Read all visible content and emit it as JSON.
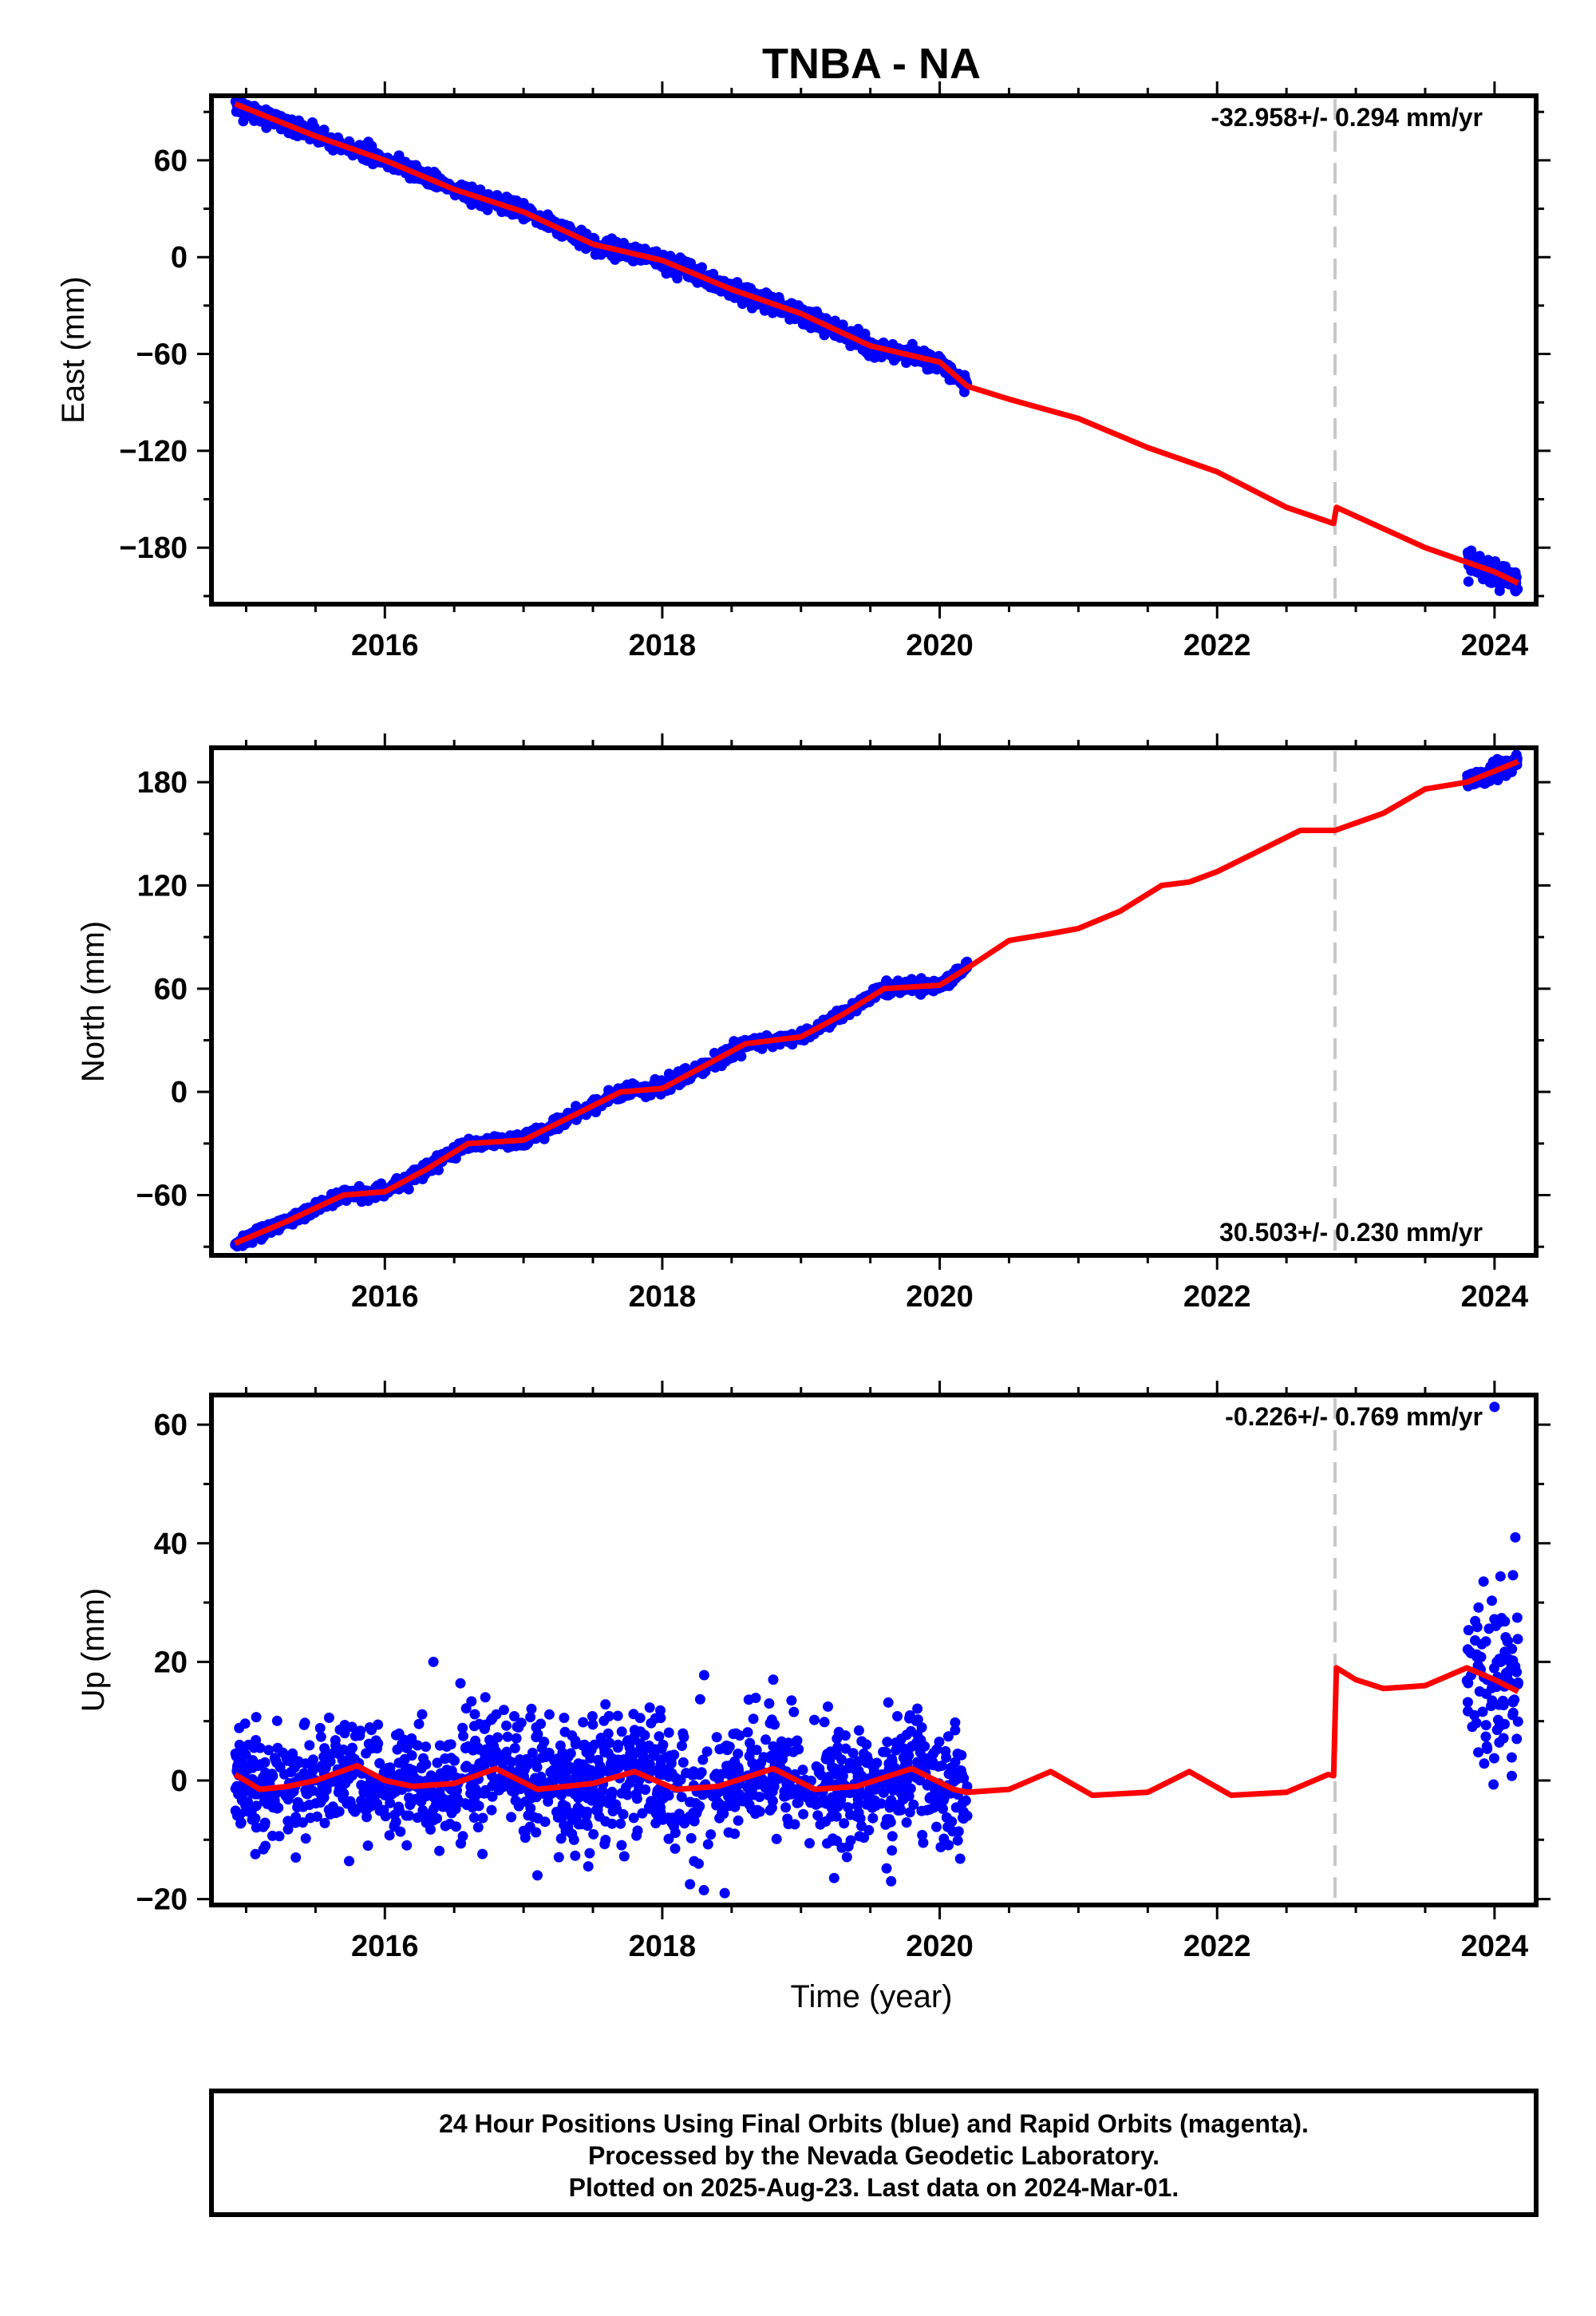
{
  "figure": {
    "title": "TNBA - NA",
    "xlabel": "Time (year)"
  },
  "chart_data": [
    {
      "type": "scatter",
      "name": "east",
      "ylabel": "East (mm)",
      "xlim": [
        2014.75,
        2024.3
      ],
      "ylim": [
        -215,
        100
      ],
      "xticks": [
        2016,
        2018,
        2020,
        2022,
        2024
      ],
      "yticks": [
        -180,
        -120,
        -60,
        0,
        60
      ],
      "rate_label": "-32.958+/- 0.294 mm/yr",
      "rate_position": "top-right",
      "offset_line_x": 2022.85,
      "series_colors": {
        "observations": "#0000ff",
        "model": "#ff0000",
        "offset": "#c8c8c8"
      },
      "model": {
        "x": [
          2014.92,
          2015.5,
          2016.0,
          2016.5,
          2017.0,
          2017.5,
          2018.0,
          2018.5,
          2019.0,
          2019.5,
          2020.0,
          2020.2,
          2020.5,
          2021.0,
          2021.5,
          2022.0,
          2022.5,
          2022.84,
          2022.86,
          2023.5,
          2024.0,
          2024.17
        ],
        "y": [
          95,
          75,
          60,
          42,
          28,
          8,
          -2,
          -20,
          -35,
          -55,
          -65,
          -80,
          -88,
          -100,
          -118,
          -133,
          -155,
          -165,
          -155,
          -180,
          -195,
          -202
        ]
      },
      "observations": {
        "segments": [
          {
            "x_start": 2014.92,
            "x_end": 2020.2,
            "noise": 2.5
          },
          {
            "x_start": 2023.8,
            "x_end": 2024.17,
            "noise": 3.5
          }
        ]
      }
    },
    {
      "type": "scatter",
      "name": "north",
      "ylabel": "North (mm)",
      "xlim": [
        2014.75,
        2024.3
      ],
      "ylim": [
        -95,
        200
      ],
      "xticks": [
        2016,
        2018,
        2020,
        2022,
        2024
      ],
      "yticks": [
        -60,
        0,
        60,
        120,
        180
      ],
      "rate_label": "30.503+/- 0.230 mm/yr",
      "rate_position": "bottom-right",
      "offset_line_x": 2022.85,
      "series_colors": {
        "observations": "#0000ff",
        "model": "#ff0000",
        "offset": "#c8c8c8"
      },
      "model": {
        "x": [
          2014.92,
          2015.3,
          2015.7,
          2016.0,
          2016.3,
          2016.6,
          2017.0,
          2017.4,
          2017.7,
          2018.0,
          2018.3,
          2018.6,
          2019.0,
          2019.3,
          2019.6,
          2020.0,
          2020.2,
          2020.5,
          2020.8,
          2021.0,
          2021.3,
          2021.6,
          2021.8,
          2022.0,
          2022.3,
          2022.6,
          2022.85,
          2023.2,
          2023.5,
          2023.8,
          2024.17
        ],
        "y": [
          -88,
          -75,
          -60,
          -58,
          -45,
          -30,
          -28,
          -12,
          0,
          2,
          15,
          28,
          32,
          45,
          60,
          62,
          72,
          88,
          92,
          95,
          105,
          120,
          122,
          128,
          140,
          152,
          152,
          162,
          176,
          180,
          192
        ]
      },
      "observations": {
        "segments": [
          {
            "x_start": 2014.92,
            "x_end": 2020.2,
            "noise": 1.8
          },
          {
            "x_start": 2023.8,
            "x_end": 2024.17,
            "noise": 2.5
          }
        ]
      }
    },
    {
      "type": "scatter",
      "name": "up",
      "ylabel": "Up (mm)",
      "xlim": [
        2014.75,
        2024.3
      ],
      "ylim": [
        -21,
        65
      ],
      "xticks": [
        2016,
        2018,
        2020,
        2022,
        2024
      ],
      "yticks": [
        -20,
        0,
        20,
        40,
        60
      ],
      "rate_label": "-0.226+/- 0.769 mm/yr",
      "rate_position": "top-right",
      "offset_line_x": 2022.85,
      "series_colors": {
        "observations": "#0000ff",
        "model": "#ff0000",
        "offset": "#c8c8c8"
      },
      "model": {
        "x": [
          2014.92,
          2015.1,
          2015.3,
          2015.5,
          2015.8,
          2016.0,
          2016.2,
          2016.5,
          2016.8,
          2017.1,
          2017.5,
          2017.8,
          2018.1,
          2018.4,
          2018.8,
          2019.1,
          2019.4,
          2019.8,
          2020.1,
          2020.2,
          2020.5,
          2020.8,
          2021.1,
          2021.5,
          2021.8,
          2022.1,
          2022.5,
          2022.8,
          2022.84,
          2022.86,
          2023.0,
          2023.2,
          2023.5,
          2023.8,
          2024.0,
          2024.17
        ],
        "y": [
          1,
          -1.5,
          -1,
          0,
          2.5,
          0,
          -1,
          -0.5,
          2,
          -1.5,
          -0.5,
          1.5,
          -1.5,
          -1,
          2,
          -1.5,
          -1,
          2,
          -1.5,
          -2,
          -1.5,
          1.5,
          -2.5,
          -2,
          1.5,
          -2.5,
          -2,
          1,
          0.8,
          19,
          17,
          15.5,
          16,
          19,
          17,
          15
        ]
      },
      "observations": {
        "segments": [
          {
            "x_start": 2014.92,
            "x_end": 2020.2,
            "noise": 5
          },
          {
            "x_start": 2023.8,
            "x_end": 2024.17,
            "noise": 7
          }
        ],
        "outliers": [
          {
            "x": 2018.2,
            "y": -17.5
          },
          {
            "x": 2018.3,
            "y": -18.5
          },
          {
            "x": 2018.45,
            "y": -19
          },
          {
            "x": 2017.1,
            "y": -16
          },
          {
            "x": 2019.65,
            "y": -17
          },
          {
            "x": 2024.0,
            "y": 63
          },
          {
            "x": 2024.15,
            "y": 41
          },
          {
            "x": 2016.35,
            "y": 20
          },
          {
            "x": 2018.8,
            "y": 17
          }
        ]
      }
    }
  ],
  "footer": {
    "line1": "24 Hour Positions Using Final Orbits (blue) and Rapid Orbits (magenta).",
    "line2": "Processed by the Nevada Geodetic Laboratory.",
    "line3": "Plotted on 2025-Aug-23. Last data on 2024-Mar-01."
  }
}
